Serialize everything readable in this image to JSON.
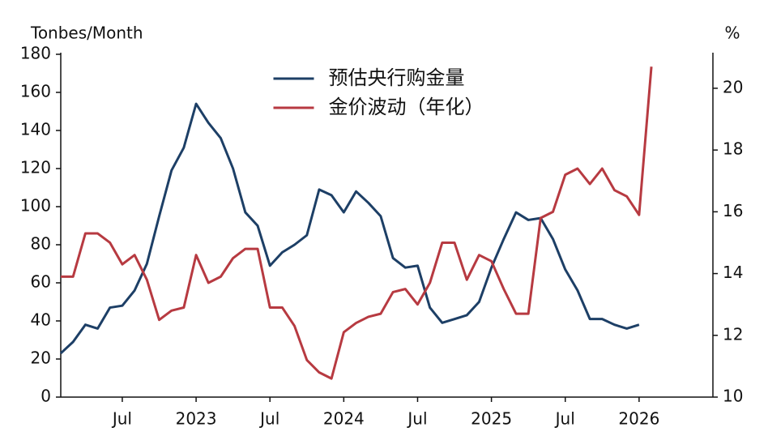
{
  "chart_data": {
    "type": "line",
    "y_label": "Tonbes/Month",
    "y2_label": "%",
    "x": [
      "2022-02",
      "2022-03",
      "2022-04",
      "2022-05",
      "2022-06",
      "2022-07",
      "2022-08",
      "2022-09",
      "2022-10",
      "2022-11",
      "2022-12",
      "2023-01",
      "2023-02",
      "2023-03",
      "2023-04",
      "2023-05",
      "2023-06",
      "2023-07",
      "2023-08",
      "2023-09",
      "2023-10",
      "2023-11",
      "2023-12",
      "2024-01",
      "2024-02",
      "2024-03",
      "2024-04",
      "2024-05",
      "2024-06",
      "2024-07",
      "2024-08",
      "2024-09",
      "2024-10",
      "2024-11",
      "2024-12",
      "2025-01",
      "2025-02",
      "2025-03",
      "2025-04",
      "2025-05",
      "2025-06",
      "2025-07",
      "2025-08",
      "2025-09",
      "2025-10",
      "2025-11",
      "2025-12",
      "2026-01",
      "2026-02"
    ],
    "xlim": [
      "2022-02",
      "2026-07"
    ],
    "xticks": [
      {
        "value": "2022-07",
        "label": "Jul"
      },
      {
        "value": "2023-01",
        "label": "2023"
      },
      {
        "value": "2023-07",
        "label": "Jul"
      },
      {
        "value": "2024-01",
        "label": "2024"
      },
      {
        "value": "2024-07",
        "label": "Jul"
      },
      {
        "value": "2025-01",
        "label": "2025"
      },
      {
        "value": "2025-07",
        "label": "Jul"
      },
      {
        "value": "2026-01",
        "label": "2026"
      }
    ],
    "ylim": [
      0,
      180
    ],
    "yticks": [
      0,
      20,
      40,
      60,
      80,
      100,
      120,
      140,
      160,
      180
    ],
    "y2lim": [
      10,
      21.1
    ],
    "y2ticks": [
      10,
      12,
      14,
      16,
      18,
      20
    ],
    "legend": "upper center",
    "series": [
      {
        "name": "预估央行购金量",
        "color": "#1d3f66",
        "values": [
          23,
          29,
          38,
          36,
          47,
          48,
          56,
          70,
          95,
          119,
          131,
          154,
          144,
          136,
          120,
          97,
          90,
          69,
          76,
          80,
          85,
          109,
          106,
          97,
          108,
          102,
          95,
          73,
          68,
          69,
          47,
          39,
          41,
          43,
          50,
          68,
          83,
          97,
          93,
          94,
          83,
          67,
          56,
          41,
          41,
          38,
          36,
          38,
          null
        ]
      },
      {
        "name": "金价波动（年化）",
        "color": "#b73a41",
        "axis": "y2",
        "values": [
          13.9,
          13.9,
          15.3,
          15.3,
          15.0,
          14.3,
          14.6,
          13.8,
          12.5,
          12.8,
          12.9,
          14.6,
          13.7,
          13.9,
          14.5,
          14.8,
          14.8,
          12.9,
          12.9,
          12.3,
          11.2,
          10.8,
          10.6,
          12.1,
          12.4,
          12.6,
          12.7,
          13.4,
          13.5,
          13.0,
          13.7,
          15.0,
          15.0,
          13.8,
          14.6,
          14.4,
          13.5,
          12.7,
          12.7,
          15.8,
          16.0,
          17.2,
          17.4,
          16.9,
          17.4,
          16.7,
          16.5,
          15.9,
          20.7
        ]
      }
    ]
  }
}
